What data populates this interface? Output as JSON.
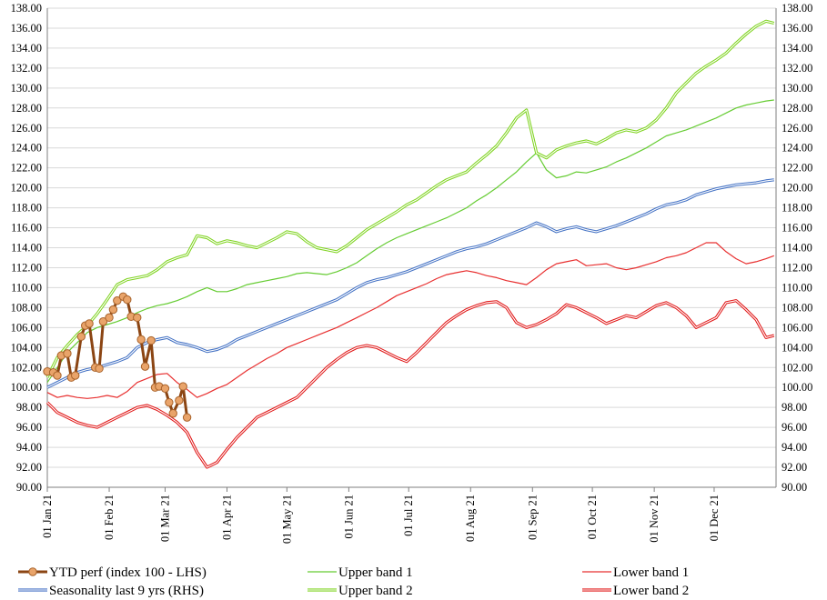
{
  "chart_data": {
    "type": "line",
    "title": "",
    "xlabel": "",
    "ylabel": "",
    "ylim": [
      90,
      138
    ],
    "ylim_right": [
      90,
      138
    ],
    "y_ticks": [
      "90.00",
      "92.00",
      "94.00",
      "96.00",
      "98.00",
      "100.00",
      "102.00",
      "104.00",
      "106.00",
      "108.00",
      "110.00",
      "112.00",
      "114.00",
      "116.00",
      "118.00",
      "120.00",
      "122.00",
      "124.00",
      "126.00",
      "128.00",
      "130.00",
      "132.00",
      "134.00",
      "136.00",
      "138.00"
    ],
    "x_tick_labels": [
      "01 Jan 21",
      "01 Feb 21",
      "01 Mar 21",
      "01 Apr 21",
      "01 May 21",
      "01 Jun 21",
      "01 Jul 21",
      "01 Aug 21",
      "01 Sep 21",
      "01 Oct 21",
      "01 Nov 21",
      "01 Dec 21"
    ],
    "x_tick_days": [
      0,
      31,
      59,
      90,
      120,
      151,
      181,
      212,
      243,
      273,
      304,
      334
    ],
    "x_range_days": [
      0,
      365
    ],
    "grid": "horizontal",
    "legend_position": "bottom",
    "series": [
      {
        "name": "YTD perf (index 100 - LHS)",
        "color": "#8B4513",
        "marker_color": "#E9A46A",
        "axis": "left",
        "x_days": [
          0,
          3,
          5,
          7,
          10,
          12,
          14,
          17,
          19,
          21,
          24,
          26,
          28,
          31,
          33,
          35,
          38,
          40,
          42,
          45,
          47,
          49,
          52,
          54,
          56,
          59,
          61,
          63,
          66,
          68,
          70
        ],
        "values": [
          101.6,
          101.5,
          101.2,
          103.2,
          103.4,
          101.0,
          101.2,
          105.1,
          106.2,
          106.4,
          102.0,
          101.9,
          106.6,
          107.0,
          107.8,
          108.7,
          109.1,
          108.8,
          107.1,
          107.0,
          104.8,
          102.1,
          104.7,
          100.0,
          100.1,
          99.9,
          98.5,
          97.4,
          98.7,
          100.1,
          97.0
        ]
      },
      {
        "name": "Seasonality last 9 yrs (RHS)",
        "color": "#4472C4",
        "axis": "right",
        "x_days": [
          0,
          5,
          10,
          15,
          20,
          25,
          30,
          35,
          40,
          45,
          50,
          55,
          60,
          65,
          70,
          75,
          80,
          85,
          90,
          95,
          100,
          105,
          110,
          115,
          120,
          125,
          130,
          135,
          140,
          145,
          150,
          155,
          160,
          165,
          170,
          175,
          180,
          185,
          190,
          195,
          200,
          205,
          210,
          215,
          220,
          225,
          230,
          235,
          240,
          245,
          250,
          255,
          260,
          265,
          270,
          275,
          280,
          285,
          290,
          295,
          300,
          305,
          310,
          315,
          320,
          325,
          330,
          335,
          340,
          345,
          350,
          355,
          360,
          364
        ],
        "values": [
          100.0,
          100.5,
          101.0,
          101.5,
          101.8,
          102.0,
          102.3,
          102.6,
          103.0,
          104.0,
          104.5,
          104.8,
          105.0,
          104.5,
          104.3,
          104.0,
          103.6,
          103.8,
          104.2,
          104.8,
          105.2,
          105.6,
          106.0,
          106.4,
          106.8,
          107.2,
          107.6,
          108.0,
          108.4,
          108.8,
          109.4,
          110.0,
          110.5,
          110.8,
          111.0,
          111.3,
          111.6,
          112.0,
          112.4,
          112.8,
          113.2,
          113.6,
          113.9,
          114.1,
          114.4,
          114.8,
          115.2,
          115.6,
          116.0,
          116.5,
          116.1,
          115.6,
          115.9,
          116.1,
          115.8,
          115.6,
          115.9,
          116.2,
          116.6,
          117.0,
          117.4,
          117.9,
          118.3,
          118.5,
          118.8,
          119.3,
          119.6,
          119.9,
          120.1,
          120.3,
          120.4,
          120.5,
          120.7,
          120.8
        ]
      },
      {
        "name": "Upper band 1",
        "color": "#66CC33",
        "axis": "right",
        "x_days": [
          0,
          5,
          10,
          15,
          20,
          25,
          30,
          35,
          40,
          45,
          50,
          55,
          60,
          65,
          70,
          75,
          80,
          85,
          90,
          95,
          100,
          105,
          110,
          115,
          120,
          125,
          130,
          135,
          140,
          145,
          150,
          155,
          160,
          165,
          170,
          175,
          180,
          185,
          190,
          195,
          200,
          205,
          210,
          215,
          220,
          225,
          230,
          235,
          240,
          245,
          250,
          255,
          260,
          265,
          270,
          275,
          280,
          285,
          290,
          295,
          300,
          305,
          310,
          315,
          320,
          325,
          330,
          335,
          340,
          345,
          350,
          355,
          360,
          364
        ],
        "values": [
          100.5,
          102.0,
          103.5,
          104.5,
          105.5,
          106.0,
          106.3,
          106.6,
          107.0,
          107.5,
          107.9,
          108.2,
          108.4,
          108.7,
          109.1,
          109.6,
          110.0,
          109.6,
          109.6,
          109.9,
          110.3,
          110.5,
          110.7,
          110.9,
          111.1,
          111.4,
          111.5,
          111.4,
          111.3,
          111.6,
          112.0,
          112.5,
          113.2,
          113.9,
          114.5,
          115.0,
          115.4,
          115.8,
          116.2,
          116.6,
          117.0,
          117.5,
          118.0,
          118.7,
          119.3,
          120.0,
          120.8,
          121.6,
          122.6,
          123.5,
          121.8,
          121.0,
          121.2,
          121.6,
          121.5,
          121.8,
          122.1,
          122.6,
          123.0,
          123.5,
          124.0,
          124.6,
          125.2,
          125.5,
          125.8,
          126.2,
          126.6,
          127.0,
          127.5,
          128.0,
          128.3,
          128.5,
          128.7,
          128.8
        ]
      },
      {
        "name": "Upper band 2",
        "color": "#7FD320",
        "axis": "right",
        "x_days": [
          0,
          5,
          10,
          15,
          20,
          25,
          30,
          35,
          40,
          45,
          50,
          55,
          60,
          65,
          70,
          75,
          80,
          85,
          90,
          95,
          100,
          105,
          110,
          115,
          120,
          125,
          130,
          135,
          140,
          145,
          150,
          155,
          160,
          165,
          170,
          175,
          180,
          185,
          190,
          195,
          200,
          205,
          210,
          215,
          220,
          225,
          230,
          235,
          240,
          245,
          250,
          255,
          260,
          265,
          270,
          275,
          280,
          285,
          290,
          295,
          300,
          305,
          310,
          315,
          320,
          325,
          330,
          335,
          340,
          345,
          350,
          355,
          360,
          364
        ],
        "values": [
          101.0,
          103.0,
          104.2,
          105.3,
          106.2,
          107.4,
          108.8,
          110.3,
          110.8,
          111.0,
          111.2,
          111.8,
          112.6,
          113.0,
          113.3,
          115.2,
          115.0,
          114.4,
          114.7,
          114.5,
          114.2,
          114.0,
          114.5,
          115.0,
          115.6,
          115.4,
          114.6,
          114.0,
          113.8,
          113.6,
          114.2,
          115.0,
          115.8,
          116.4,
          117.0,
          117.6,
          118.3,
          118.8,
          119.5,
          120.2,
          120.8,
          121.2,
          121.6,
          122.5,
          123.3,
          124.2,
          125.5,
          127.0,
          127.8,
          123.5,
          123.0,
          123.8,
          124.2,
          124.5,
          124.7,
          124.4,
          124.9,
          125.5,
          125.8,
          125.6,
          126.0,
          126.8,
          128.0,
          129.5,
          130.5,
          131.5,
          132.2,
          132.8,
          133.5,
          134.5,
          135.4,
          136.2,
          136.7,
          136.5
        ]
      },
      {
        "name": "Lower band 1",
        "color": "#E83030",
        "axis": "right",
        "x_days": [
          0,
          5,
          10,
          15,
          20,
          25,
          30,
          35,
          40,
          45,
          50,
          55,
          60,
          65,
          70,
          75,
          80,
          85,
          90,
          95,
          100,
          105,
          110,
          115,
          120,
          125,
          130,
          135,
          140,
          145,
          150,
          155,
          160,
          165,
          170,
          175,
          180,
          185,
          190,
          195,
          200,
          205,
          210,
          215,
          220,
          225,
          230,
          235,
          240,
          245,
          250,
          255,
          260,
          265,
          270,
          275,
          280,
          285,
          290,
          295,
          300,
          305,
          310,
          315,
          320,
          325,
          330,
          335,
          340,
          345,
          350,
          355,
          360,
          364
        ],
        "values": [
          99.5,
          99.0,
          99.2,
          99.0,
          98.9,
          99.0,
          99.2,
          99.0,
          99.6,
          100.5,
          100.9,
          101.3,
          101.4,
          100.5,
          99.8,
          99.0,
          99.4,
          99.9,
          100.3,
          101.0,
          101.7,
          102.3,
          102.9,
          103.4,
          104.0,
          104.4,
          104.8,
          105.2,
          105.6,
          106.0,
          106.5,
          107.0,
          107.5,
          108.0,
          108.6,
          109.2,
          109.6,
          110.0,
          110.4,
          110.9,
          111.3,
          111.5,
          111.7,
          111.5,
          111.2,
          111.0,
          110.7,
          110.5,
          110.3,
          111.0,
          111.8,
          112.4,
          112.6,
          112.8,
          112.2,
          112.3,
          112.4,
          112.0,
          111.8,
          112.0,
          112.3,
          112.6,
          113.0,
          113.2,
          113.5,
          114.0,
          114.5,
          114.5,
          113.6,
          112.9,
          112.4,
          112.6,
          112.9,
          113.2
        ]
      },
      {
        "name": "Lower band 2",
        "color": "#E01818",
        "axis": "right",
        "x_days": [
          0,
          5,
          10,
          15,
          20,
          25,
          30,
          35,
          40,
          45,
          50,
          55,
          60,
          65,
          70,
          75,
          80,
          85,
          90,
          95,
          100,
          105,
          110,
          115,
          120,
          125,
          130,
          135,
          140,
          145,
          150,
          155,
          160,
          165,
          170,
          175,
          180,
          185,
          190,
          195,
          200,
          205,
          210,
          215,
          220,
          225,
          230,
          235,
          240,
          245,
          250,
          255,
          260,
          265,
          270,
          275,
          280,
          285,
          290,
          295,
          300,
          305,
          310,
          315,
          320,
          325,
          330,
          335,
          340,
          345,
          350,
          355,
          360,
          364
        ],
        "values": [
          98.5,
          97.5,
          97.0,
          96.5,
          96.2,
          96.0,
          96.5,
          97.0,
          97.5,
          98.0,
          98.2,
          97.8,
          97.2,
          96.5,
          95.5,
          93.5,
          92.0,
          92.5,
          93.8,
          95.0,
          96.0,
          97.0,
          97.5,
          98.0,
          98.5,
          99.0,
          100.0,
          101.0,
          102.0,
          102.8,
          103.5,
          104.0,
          104.2,
          104.0,
          103.5,
          103.0,
          102.6,
          103.5,
          104.5,
          105.5,
          106.5,
          107.2,
          107.8,
          108.2,
          108.5,
          108.6,
          108.0,
          106.5,
          106.0,
          106.3,
          106.8,
          107.4,
          108.3,
          108.0,
          107.5,
          107.0,
          106.4,
          106.8,
          107.2,
          107.0,
          107.6,
          108.2,
          108.5,
          108.0,
          107.2,
          106.0,
          106.5,
          107.0,
          108.5,
          108.7,
          107.8,
          106.8,
          105.0,
          105.2
        ]
      }
    ]
  },
  "legend": {
    "items": [
      {
        "label": "YTD perf (index 100 - LHS)",
        "color": "#8B4513",
        "marker": "circle"
      },
      {
        "label": "Upper band 1",
        "color": "#66CC33",
        "marker": "none"
      },
      {
        "label": "Lower band 1",
        "color": "#E83030",
        "marker": "none"
      },
      {
        "label": "Seasonality last 9 yrs (RHS)",
        "color": "#4472C4",
        "marker": "none"
      },
      {
        "label": "Upper band 2",
        "color": "#7FD320",
        "marker": "none"
      },
      {
        "label": "Lower band 2",
        "color": "#E01818",
        "marker": "none"
      }
    ]
  }
}
